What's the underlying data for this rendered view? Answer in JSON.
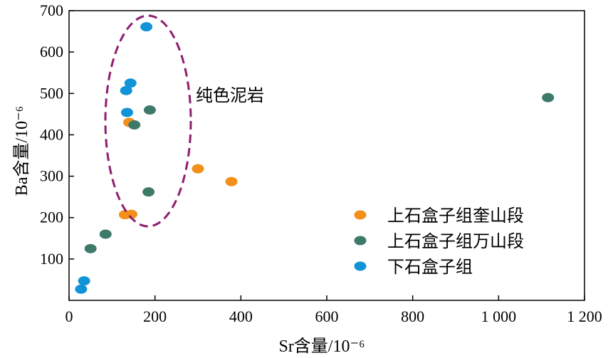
{
  "chart_data": {
    "type": "scatter",
    "title": "",
    "xlabel": "Sr含量/10⁻⁶",
    "ylabel": "Ba含量/10⁻⁶",
    "xlim": [
      0,
      1200
    ],
    "ylim": [
      0,
      700
    ],
    "xticks": [
      0,
      200,
      400,
      600,
      800,
      1000,
      1200
    ],
    "xtick_labels": [
      "0",
      "200",
      "400",
      "600",
      "800",
      "1 000",
      "1 200"
    ],
    "yticks": [
      100,
      200,
      300,
      400,
      500,
      600,
      700
    ],
    "ytick_labels": [
      "100",
      "200",
      "300",
      "400",
      "500",
      "600",
      "700"
    ],
    "grid": false,
    "legend_position": "bottom-right",
    "series": [
      {
        "name": "上石盒子组奎山段",
        "color": "#f39019",
        "points": [
          [
            140,
            430
          ],
          [
            130,
            207
          ],
          [
            145,
            208
          ],
          [
            300,
            318
          ],
          [
            378,
            287
          ]
        ]
      },
      {
        "name": "上石盒子组万山段",
        "color": "#3d7a6a",
        "points": [
          [
            152,
            424
          ],
          [
            188,
            460
          ],
          [
            185,
            262
          ],
          [
            85,
            160
          ],
          [
            50,
            125
          ],
          [
            1115,
            490
          ]
        ]
      },
      {
        "name": "下石盒子组",
        "color": "#1193d8",
        "points": [
          [
            180,
            661
          ],
          [
            143,
            525
          ],
          [
            133,
            507
          ],
          [
            135,
            454
          ],
          [
            35,
            47
          ],
          [
            28,
            27
          ]
        ]
      }
    ],
    "annotations": [
      {
        "text": "纯色泥岩"
      }
    ]
  }
}
